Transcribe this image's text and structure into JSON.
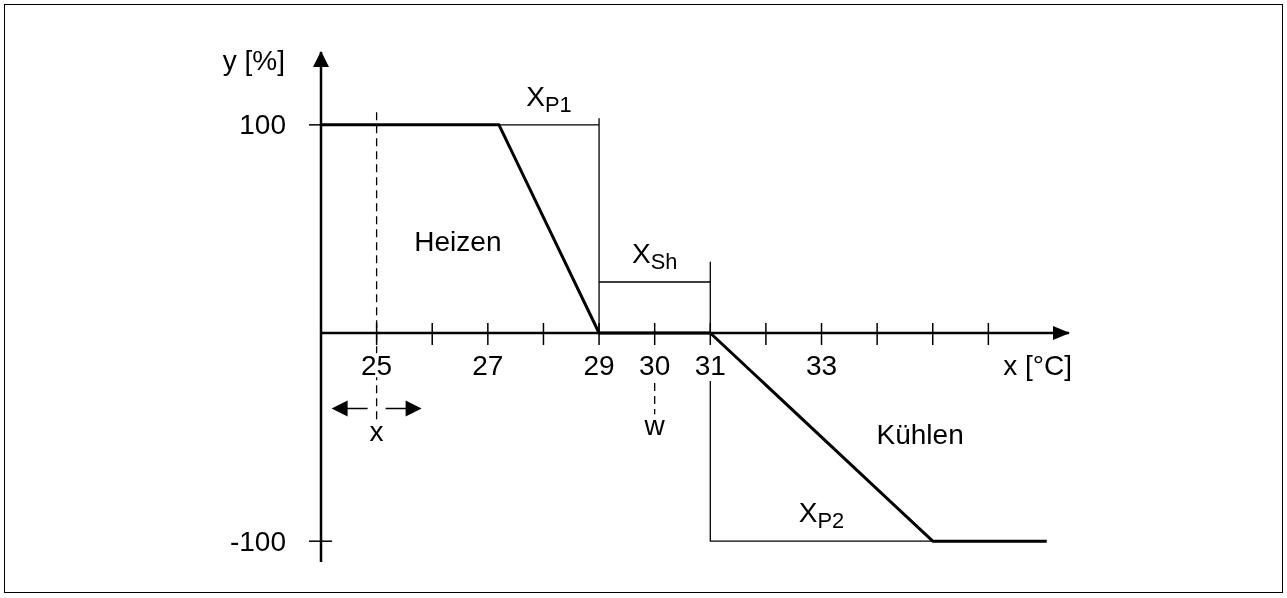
{
  "chart_data": {
    "type": "line",
    "xlabel": "x [°C]",
    "ylabel": "y [%]",
    "xlim": [
      24,
      37.45
    ],
    "ylim": [
      -110,
      135
    ],
    "xticks": [
      25,
      {
        "value": 26,
        "label": null
      },
      27,
      {
        "value": 28,
        "label": null
      },
      29,
      30,
      31,
      {
        "value": 32,
        "label": null
      },
      33,
      {
        "value": 34,
        "label": null
      },
      {
        "value": 35,
        "label": null
      },
      {
        "value": 36,
        "label": null
      }
    ],
    "yticks": [
      -100,
      100
    ],
    "series": [
      {
        "color": "#000000",
        "x": [
          24,
          27.2,
          29,
          31,
          35,
          37.05
        ],
        "values": [
          100,
          100,
          0,
          0,
          -100,
          -100
        ]
      },
      {
        "name": "X$_{P1}$",
        "color": "#000000",
        "x": [
          27.2,
          29,
          29,
          29
        ],
        "values": [
          100,
          100,
          103,
          0
        ]
      },
      {
        "name": "X$_{Sh}$",
        "color": "#000000",
        "x": [
          29,
          31,
          31,
          31
        ],
        "values": [
          24.5,
          24.5,
          34,
          0
        ]
      },
      {
        "name": "X$_{P2}$",
        "color": "#000000",
        "x": [
          31,
          31,
          35
        ],
        "values": [
          -23,
          -100,
          -100
        ]
      },
      {
        "name": "x",
        "color": "#000000",
        "line_style": "dashed",
        "x": [
          25,
          25
        ],
        "values": [
          106,
          -42
        ]
      },
      {
        "name": "w",
        "color": "#000000",
        "line_style": "dashed",
        "x": [
          30,
          30
        ],
        "values": [
          -24,
          -39
        ]
      }
    ],
    "annotations": [
      "Heizen",
      "Kühlen"
    ]
  }
}
